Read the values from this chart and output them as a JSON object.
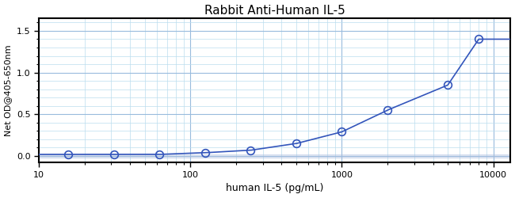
{
  "title": "Rabbit Anti-Human IL-5",
  "xlabel": "human IL-5 (pg/mL)",
  "ylabel": "Net OD@405-650nm",
  "x_data": [
    15.6,
    31.2,
    62.5,
    125,
    250,
    500,
    1000,
    2000,
    5000,
    8000
  ],
  "y_data": [
    0.02,
    0.02,
    0.02,
    0.04,
    0.07,
    0.15,
    0.29,
    0.55,
    0.85,
    1.4
  ],
  "xlim": [
    10,
    13000
  ],
  "ylim": [
    -0.08,
    1.65
  ],
  "yticks": [
    0,
    0.5,
    1.0,
    1.5
  ],
  "xticks": [
    10,
    100,
    1000,
    10000
  ],
  "line_color": "#3355bb",
  "marker_color": "#3355bb",
  "bg_color": "#ffffff",
  "plot_bg_color": "#ffffff",
  "grid_color_major": "#99bbdd",
  "grid_color_minor": "#bbddee",
  "curve_x_start": 10,
  "curve_x_end": 13000,
  "title_fontsize": 11,
  "xlabel_fontsize": 9,
  "ylabel_fontsize": 8,
  "zero_line_color": "#aabbdd"
}
